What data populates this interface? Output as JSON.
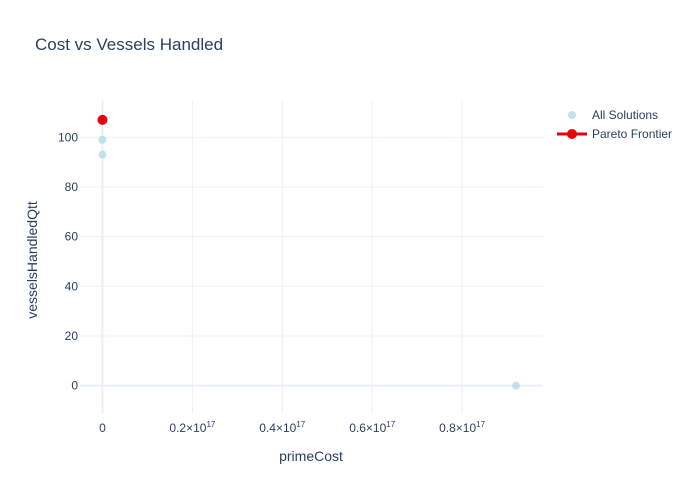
{
  "chart_data": {
    "type": "scatter",
    "title": "Cost vs Vessels Handled",
    "xlabel": "primeCost",
    "ylabel": "vesselsHandledQtt",
    "xlim": [
      -5000000000000000.0,
      9.8e+16
    ],
    "ylim": [
      -11,
      115
    ],
    "x_ticks": [
      {
        "value": 0,
        "mantissa": "0",
        "exp": ""
      },
      {
        "value": 2e+16,
        "mantissa": "0.2×10",
        "exp": "17"
      },
      {
        "value": 4e+16,
        "mantissa": "0.4×10",
        "exp": "17"
      },
      {
        "value": 6e+16,
        "mantissa": "0.6×10",
        "exp": "17"
      },
      {
        "value": 8e+16,
        "mantissa": "0.8×10",
        "exp": "17"
      }
    ],
    "y_ticks": [
      0,
      20,
      40,
      60,
      80,
      100
    ],
    "grid": true,
    "legend_position": "top-right",
    "series": [
      {
        "name": "All Solutions",
        "color": "#add8e6",
        "mode": "markers",
        "points": [
          {
            "x": 0,
            "y": 93
          },
          {
            "x": 0,
            "y": 99
          },
          {
            "x": 9.2e+16,
            "y": 0
          }
        ]
      },
      {
        "name": "Pareto Frontier",
        "color": "#e8000b",
        "mode": "lines+markers",
        "points": [
          {
            "x": 0,
            "y": 107
          }
        ]
      }
    ]
  }
}
